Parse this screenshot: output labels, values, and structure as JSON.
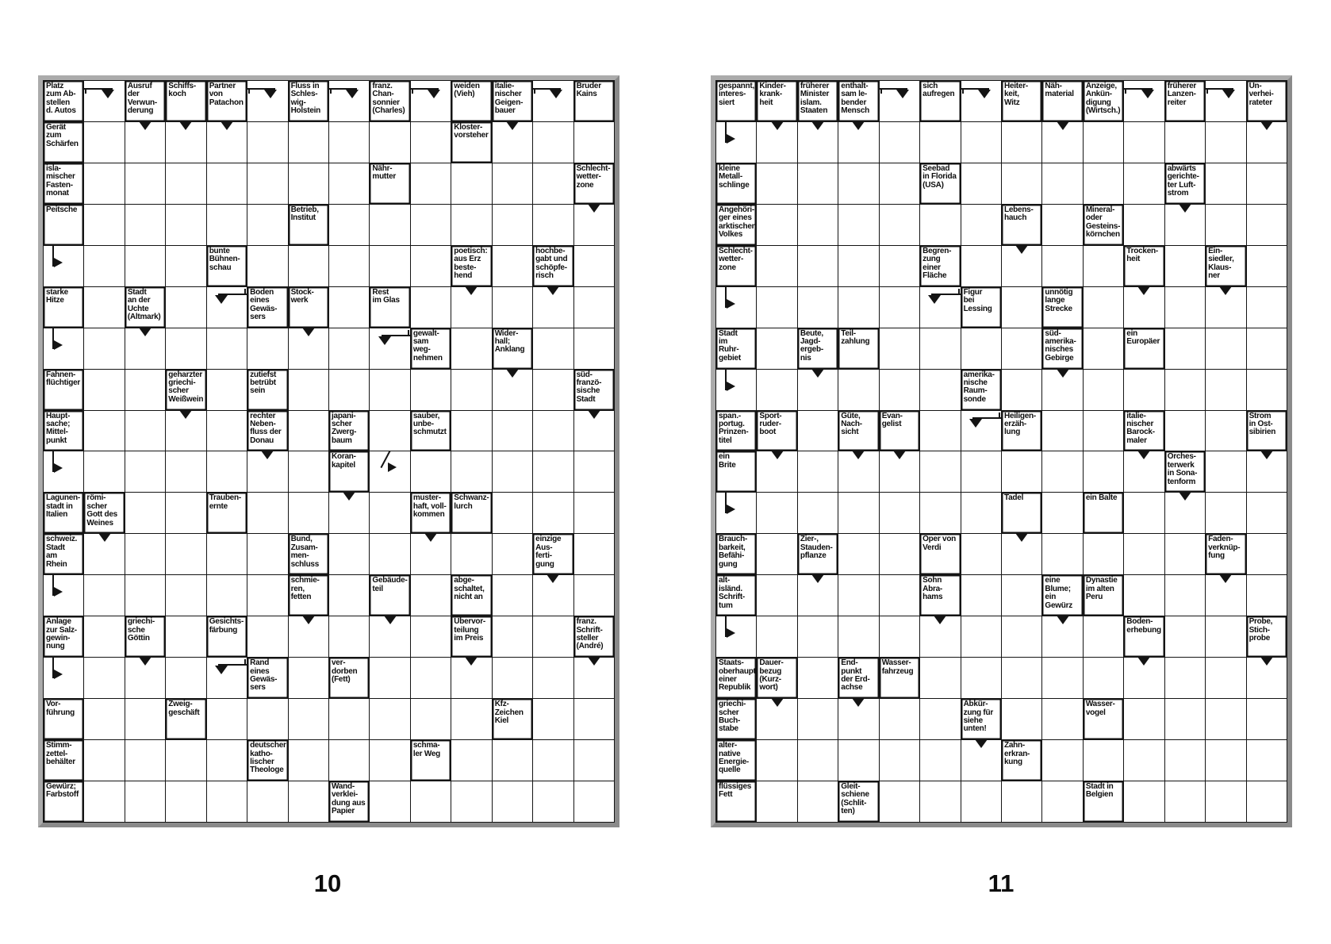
{
  "page": {
    "left_number": "10",
    "right_number": "11"
  },
  "grids": [
    {
      "id": "left",
      "cols": 14,
      "rows": 18,
      "cells": [
        {
          "r": 0,
          "c": 0,
          "t": "Platz\nzum Ab-\nstellen\nd. Autos"
        },
        {
          "r": 0,
          "c": 1,
          "a": "hd"
        },
        {
          "r": 0,
          "c": 2,
          "t": "Ausruf\nder\nVerwun-\nderung"
        },
        {
          "r": 0,
          "c": 3,
          "t": "Schiffs-\nkoch"
        },
        {
          "r": 0,
          "c": 4,
          "t": "Partner\nvon\nPatachon"
        },
        {
          "r": 0,
          "c": 5,
          "a": "hd"
        },
        {
          "r": 0,
          "c": 6,
          "t": "Fluss in\nSchles-\nwig-\nHolstein"
        },
        {
          "r": 0,
          "c": 7,
          "a": "hd"
        },
        {
          "r": 0,
          "c": 8,
          "t": "franz.\nChan-\nsonnier\n(Charles)"
        },
        {
          "r": 0,
          "c": 9,
          "a": "hd"
        },
        {
          "r": 0,
          "c": 10,
          "t": "weiden\n(Vieh)"
        },
        {
          "r": 0,
          "c": 11,
          "t": "italie-\nnischer\nGeigen-\nbauer"
        },
        {
          "r": 0,
          "c": 12,
          "a": "hd"
        },
        {
          "r": 0,
          "c": 13,
          "t": "Bruder\nKains"
        },
        {
          "r": 1,
          "c": 0,
          "t": "Gerät\nzum\nSchärfen",
          "m": "r"
        },
        {
          "r": 1,
          "c": 2,
          "a": "vd"
        },
        {
          "r": 1,
          "c": 3,
          "a": "vd"
        },
        {
          "r": 1,
          "c": 4,
          "a": "vd"
        },
        {
          "r": 1,
          "c": 10,
          "t": "Kloster-\nvorsteher",
          "m": "r"
        },
        {
          "r": 1,
          "c": 11,
          "a": "vd"
        },
        {
          "r": 2,
          "c": 0,
          "t": "isla-\nmischer\nFasten-\nmonat",
          "m": "r"
        },
        {
          "r": 2,
          "c": 8,
          "t": "Nähr-\nmutter",
          "m": "r"
        },
        {
          "r": 2,
          "c": 13,
          "t": "Schlecht-\nwetter-\nzone"
        },
        {
          "r": 3,
          "c": 0,
          "t": "Peitsche",
          "m": "r"
        },
        {
          "r": 3,
          "c": 6,
          "t": "Betrieb,\nInstitut",
          "m": "r"
        },
        {
          "r": 3,
          "c": 13,
          "a": "vd"
        },
        {
          "r": 4,
          "c": 0,
          "a": "br"
        },
        {
          "r": 4,
          "c": 4,
          "t": "bunte\nBühnen-\nschau",
          "m": "r"
        },
        {
          "r": 4,
          "c": 10,
          "t": "poetisch:\naus Erz\nbeste-\nhend"
        },
        {
          "r": 4,
          "c": 12,
          "t": "hochbe-\ngabt und\nschöpfe-\nrisch"
        },
        {
          "r": 5,
          "c": 0,
          "t": "starke\nHitze"
        },
        {
          "r": 5,
          "c": 2,
          "t": "Stadt\nan der\nUchte\n(Altmark)"
        },
        {
          "r": 5,
          "c": 4,
          "a": "bd"
        },
        {
          "r": 5,
          "c": 5,
          "t": "Boden\neines\nGewäs-\nsers"
        },
        {
          "r": 5,
          "c": 6,
          "t": "Stock-\nwerk"
        },
        {
          "r": 5,
          "c": 8,
          "t": "Rest\nim Glas",
          "m": "r"
        },
        {
          "r": 5,
          "c": 10,
          "a": "vd"
        },
        {
          "r": 5,
          "c": 12,
          "a": "vd"
        },
        {
          "r": 6,
          "c": 0,
          "a": "br"
        },
        {
          "r": 6,
          "c": 2,
          "a": "vd"
        },
        {
          "r": 6,
          "c": 6,
          "a": "vd"
        },
        {
          "r": 6,
          "c": 8,
          "a": "bd"
        },
        {
          "r": 6,
          "c": 9,
          "t": "gewalt-\nsam\nweg-\nnehmen"
        },
        {
          "r": 6,
          "c": 11,
          "t": "Wider-\nhall;\nAnklang"
        },
        {
          "r": 7,
          "c": 0,
          "t": "Fahnen-\nflüchtiger"
        },
        {
          "r": 7,
          "c": 3,
          "t": "geharzter\ngriechi-\nscher\nWeißwein"
        },
        {
          "r": 7,
          "c": 5,
          "t": "zutiefst\nbetrübt\nsein",
          "m": "r"
        },
        {
          "r": 7,
          "c": 11,
          "a": "vd"
        },
        {
          "r": 7,
          "c": 13,
          "t": "süd-\nfranzö-\nsische\nStadt"
        },
        {
          "r": 8,
          "c": 0,
          "t": "Haupt-\nsache;\nMittel-\npunkt",
          "m": "r"
        },
        {
          "r": 8,
          "c": 3,
          "a": "vd"
        },
        {
          "r": 8,
          "c": 5,
          "t": "rechter\nNeben-\nfluss der\nDonau"
        },
        {
          "r": 8,
          "c": 7,
          "t": "japani-\nscher\nZwerg-\nbaum"
        },
        {
          "r": 8,
          "c": 9,
          "t": "sauber,\nunbe-\nschmutzt",
          "m": "r"
        },
        {
          "r": 8,
          "c": 13,
          "a": "vd"
        },
        {
          "r": 9,
          "c": 0,
          "a": "br"
        },
        {
          "r": 9,
          "c": 5,
          "a": "vd"
        },
        {
          "r": 9,
          "c": 7,
          "t": "Koran-\nkapitel"
        },
        {
          "r": 9,
          "c": 8,
          "a": "dg"
        },
        {
          "r": 10,
          "c": 0,
          "t": "Lagunen-\nstadt in\nItalien"
        },
        {
          "r": 10,
          "c": 1,
          "t": "römi-\nscher\nGott des\nWeines"
        },
        {
          "r": 10,
          "c": 4,
          "t": "Trauben-\nernte",
          "m": "r"
        },
        {
          "r": 10,
          "c": 7,
          "a": "vd"
        },
        {
          "r": 10,
          "c": 9,
          "t": "muster-\nhaft, voll-\nkommen"
        },
        {
          "r": 10,
          "c": 10,
          "t": "Schwanz-\nlurch",
          "m": "r"
        },
        {
          "r": 11,
          "c": 0,
          "t": "schweiz.\nStadt\nam\nRhein",
          "m": "r"
        },
        {
          "r": 11,
          "c": 1,
          "a": "vd"
        },
        {
          "r": 11,
          "c": 6,
          "t": "Bund,\nZusam-\nmen-\nschluss",
          "m": "r"
        },
        {
          "r": 11,
          "c": 9,
          "a": "vd"
        },
        {
          "r": 11,
          "c": 12,
          "t": "einzige\nAus-\nferti-\ngung"
        },
        {
          "r": 12,
          "c": 0,
          "a": "br"
        },
        {
          "r": 12,
          "c": 6,
          "t": "schmie-\nren,\nfetten"
        },
        {
          "r": 12,
          "c": 8,
          "t": "Gebäude-\nteil"
        },
        {
          "r": 12,
          "c": 10,
          "t": "abge-\nschaltet,\nnicht an",
          "m": "r"
        },
        {
          "r": 12,
          "c": 12,
          "a": "vd"
        },
        {
          "r": 13,
          "c": 0,
          "t": "Anlage\nzur Salz-\ngewin-\nnung"
        },
        {
          "r": 13,
          "c": 2,
          "t": "griechi-\nsche\nGöttin"
        },
        {
          "r": 13,
          "c": 4,
          "t": "Gesichts-\nfärbung",
          "m": "r"
        },
        {
          "r": 13,
          "c": 6,
          "a": "vd"
        },
        {
          "r": 13,
          "c": 8,
          "a": "vd"
        },
        {
          "r": 13,
          "c": 10,
          "t": "Übervor-\nteilung\nim Preis"
        },
        {
          "r": 13,
          "c": 13,
          "t": "franz.\nSchrift-\nsteller\n(André)"
        },
        {
          "r": 14,
          "c": 0,
          "a": "br"
        },
        {
          "r": 14,
          "c": 2,
          "a": "vd"
        },
        {
          "r": 14,
          "c": 4,
          "a": "bd"
        },
        {
          "r": 14,
          "c": 5,
          "t": "Rand\neines\nGewäs-\nsers"
        },
        {
          "r": 14,
          "c": 7,
          "t": "ver-\ndorben\n(Fett)",
          "m": "r"
        },
        {
          "r": 14,
          "c": 10,
          "a": "vd"
        },
        {
          "r": 14,
          "c": 13,
          "a": "vd"
        },
        {
          "r": 15,
          "c": 0,
          "t": "Vor-\nführung"
        },
        {
          "r": 15,
          "c": 3,
          "t": "Zweig-\ngeschäft",
          "m": "r"
        },
        {
          "r": 15,
          "c": 11,
          "t": "Kfz-\nZeichen\nKiel",
          "m": "r"
        },
        {
          "r": 16,
          "c": 0,
          "t": "Stimm-\nzettel-\nbehälter",
          "m": "r"
        },
        {
          "r": 16,
          "c": 5,
          "t": "deutscher\nkatho-\nlischer\nTheologe",
          "m": "r"
        },
        {
          "r": 16,
          "c": 9,
          "t": "schma-\nler Weg",
          "m": "r"
        },
        {
          "r": 17,
          "c": 0,
          "t": "Gewürz;\nFarbstoff",
          "m": "r"
        },
        {
          "r": 17,
          "c": 7,
          "t": "Wand-\nverklei-\ndung aus\nPapier",
          "m": "r"
        }
      ]
    },
    {
      "id": "right",
      "cols": 14,
      "rows": 18,
      "cells": [
        {
          "r": 0,
          "c": 0,
          "t": "gespannt,\ninteres-\nsiert"
        },
        {
          "r": 0,
          "c": 1,
          "t": "Kinder-\nkrank-\nheit"
        },
        {
          "r": 0,
          "c": 2,
          "t": "früherer\nMinister\nislam.\nStaaten"
        },
        {
          "r": 0,
          "c": 3,
          "t": "enthalt-\nsam le-\nbender\nMensch"
        },
        {
          "r": 0,
          "c": 4,
          "a": "hd"
        },
        {
          "r": 0,
          "c": 5,
          "t": "sich\naufregen"
        },
        {
          "r": 0,
          "c": 6,
          "a": "hd"
        },
        {
          "r": 0,
          "c": 7,
          "t": "Heiter-\nkeit,\nWitz"
        },
        {
          "r": 0,
          "c": 8,
          "t": "Näh-\nmaterial"
        },
        {
          "r": 0,
          "c": 9,
          "t": "Anzeige,\nAnkün-\ndigung\n(Wirtsch.)"
        },
        {
          "r": 0,
          "c": 10,
          "a": "hd"
        },
        {
          "r": 0,
          "c": 11,
          "t": "früherer\nLanzen-\nreiter"
        },
        {
          "r": 0,
          "c": 12,
          "a": "hd"
        },
        {
          "r": 0,
          "c": 13,
          "t": "Un-\nverhei-\nrateter"
        },
        {
          "r": 1,
          "c": 0,
          "a": "br"
        },
        {
          "r": 1,
          "c": 1,
          "a": "vd"
        },
        {
          "r": 1,
          "c": 2,
          "a": "vd"
        },
        {
          "r": 1,
          "c": 3,
          "a": "vd"
        },
        {
          "r": 1,
          "c": 8,
          "a": "vd"
        },
        {
          "r": 1,
          "c": 13,
          "a": "vd"
        },
        {
          "r": 2,
          "c": 0,
          "t": "kleine\nMetall-\nschlinge",
          "m": "r"
        },
        {
          "r": 2,
          "c": 5,
          "t": "Seebad\nin Florida\n(USA)",
          "m": "r"
        },
        {
          "r": 2,
          "c": 11,
          "t": "abwärts\ngerichte-\nter Luft-\nstrom"
        },
        {
          "r": 3,
          "c": 0,
          "t": "Angehöri-\nger eines\narktischen\nVolkes",
          "m": "r"
        },
        {
          "r": 3,
          "c": 7,
          "t": "Lebens-\nhauch"
        },
        {
          "r": 3,
          "c": 9,
          "t": "Mineral-\noder\nGesteins-\nkörnchen",
          "m": "r"
        },
        {
          "r": 3,
          "c": 11,
          "a": "vd"
        },
        {
          "r": 4,
          "c": 0,
          "t": "Schlecht-\nwetter-\nzone",
          "m": "r"
        },
        {
          "r": 4,
          "c": 5,
          "t": "Begren-\nzung\neiner\nFläche",
          "m": "r"
        },
        {
          "r": 4,
          "c": 7,
          "a": "vd"
        },
        {
          "r": 4,
          "c": 10,
          "t": "Trocken-\nheit"
        },
        {
          "r": 4,
          "c": 12,
          "t": "Ein-\nsiedler,\nKlaus-\nner"
        },
        {
          "r": 5,
          "c": 0,
          "a": "br"
        },
        {
          "r": 5,
          "c": 5,
          "a": "bd"
        },
        {
          "r": 5,
          "c": 6,
          "t": "Figur\nbei\nLessing"
        },
        {
          "r": 5,
          "c": 8,
          "t": "unnötig\nlange\nStrecke",
          "m": "r"
        },
        {
          "r": 5,
          "c": 10,
          "a": "vd"
        },
        {
          "r": 5,
          "c": 12,
          "a": "vd"
        },
        {
          "r": 6,
          "c": 0,
          "t": "Stadt\nim\nRuhr-\ngebiet"
        },
        {
          "r": 6,
          "c": 2,
          "t": "Beute,\nJagd-\nergeb-\nnis"
        },
        {
          "r": 6,
          "c": 3,
          "t": "Teil-\nzahlung",
          "m": "r"
        },
        {
          "r": 6,
          "c": 8,
          "t": "süd-\namerika-\nnisches\nGebirge"
        },
        {
          "r": 6,
          "c": 10,
          "t": "ein\nEuropäer",
          "m": "r"
        },
        {
          "r": 7,
          "c": 0,
          "a": "br"
        },
        {
          "r": 7,
          "c": 2,
          "a": "vd"
        },
        {
          "r": 7,
          "c": 6,
          "t": "amerika-\nnische\nRaum-\nsonde",
          "m": "r"
        },
        {
          "r": 7,
          "c": 8,
          "a": "vd"
        },
        {
          "r": 8,
          "c": 0,
          "t": "span.-\nportug.\nPrinzen-\ntitel"
        },
        {
          "r": 8,
          "c": 1,
          "t": "Sport-\nruder-\nboot"
        },
        {
          "r": 8,
          "c": 3,
          "t": "Güte,\nNach-\nsicht"
        },
        {
          "r": 8,
          "c": 4,
          "t": "Evan-\ngelist"
        },
        {
          "r": 8,
          "c": 6,
          "a": "bd"
        },
        {
          "r": 8,
          "c": 7,
          "t": "Heiligen-\nerzäh-\nlung"
        },
        {
          "r": 8,
          "c": 10,
          "t": "italie-\nnischer\nBarock-\nmaler"
        },
        {
          "r": 8,
          "c": 13,
          "t": "Strom\nin Ost-\nsibirien"
        },
        {
          "r": 9,
          "c": 0,
          "t": "ein\nBrite",
          "m": "r"
        },
        {
          "r": 9,
          "c": 1,
          "a": "vd"
        },
        {
          "r": 9,
          "c": 3,
          "a": "vd"
        },
        {
          "r": 9,
          "c": 4,
          "a": "vd"
        },
        {
          "r": 9,
          "c": 10,
          "a": "vd"
        },
        {
          "r": 9,
          "c": 11,
          "t": "Orches-\nterwerk\nin Sona-\ntenform"
        },
        {
          "r": 9,
          "c": 13,
          "a": "vd"
        },
        {
          "r": 10,
          "c": 0,
          "a": "br"
        },
        {
          "r": 10,
          "c": 7,
          "t": "Tadel"
        },
        {
          "r": 10,
          "c": 9,
          "t": "ein Balte",
          "m": "r"
        },
        {
          "r": 10,
          "c": 11,
          "a": "vd"
        },
        {
          "r": 11,
          "c": 0,
          "t": "Brauch-\nbarkeit,\nBefähi-\ngung"
        },
        {
          "r": 11,
          "c": 2,
          "t": "Zier-,\nStauden-\npflanze"
        },
        {
          "r": 11,
          "c": 5,
          "t": "Oper von\nVerdi",
          "m": "r"
        },
        {
          "r": 11,
          "c": 7,
          "a": "vd"
        },
        {
          "r": 11,
          "c": 12,
          "t": "Faden-\nverknüp-\nfung"
        },
        {
          "r": 12,
          "c": 0,
          "t": "alt-\nisländ.\nSchrift-\ntum",
          "m": "r"
        },
        {
          "r": 12,
          "c": 2,
          "a": "vd"
        },
        {
          "r": 12,
          "c": 5,
          "t": "Sohn\nAbra-\nhams"
        },
        {
          "r": 12,
          "c": 8,
          "t": "eine\nBlume;\nein\nGewürz"
        },
        {
          "r": 12,
          "c": 9,
          "t": "Dynastie\nim alten\nPeru",
          "m": "r"
        },
        {
          "r": 12,
          "c": 12,
          "a": "vd"
        },
        {
          "r": 13,
          "c": 0,
          "a": "br"
        },
        {
          "r": 13,
          "c": 5,
          "a": "vd"
        },
        {
          "r": 13,
          "c": 8,
          "a": "vd"
        },
        {
          "r": 13,
          "c": 10,
          "t": "Boden-\nerhebung"
        },
        {
          "r": 13,
          "c": 13,
          "t": "Probe,\nStich-\nprobe"
        },
        {
          "r": 14,
          "c": 0,
          "t": "Staats-\noberhaupt\neiner\nRepublik"
        },
        {
          "r": 14,
          "c": 1,
          "t": "Dauer-\nbezug\n(Kurz-\nwort)"
        },
        {
          "r": 14,
          "c": 3,
          "t": "End-\npunkt\nder Erd-\nachse"
        },
        {
          "r": 14,
          "c": 4,
          "t": "Wasser-\nfahrzeug",
          "m": "r"
        },
        {
          "r": 14,
          "c": 10,
          "a": "vd"
        },
        {
          "r": 14,
          "c": 13,
          "a": "vd"
        },
        {
          "r": 15,
          "c": 0,
          "t": "griechi-\nscher\nBuch-\nstabe",
          "m": "r"
        },
        {
          "r": 15,
          "c": 1,
          "a": "vd"
        },
        {
          "r": 15,
          "c": 3,
          "a": "vd"
        },
        {
          "r": 15,
          "c": 6,
          "t": "Abkür-\nzung für\nsiehe\nunten!"
        },
        {
          "r": 15,
          "c": 9,
          "t": "Wasser-\nvogel",
          "m": "r"
        },
        {
          "r": 16,
          "c": 0,
          "t": "alter-\nnative\nEnergie-\nquelle",
          "m": "r"
        },
        {
          "r": 16,
          "c": 6,
          "a": "vd"
        },
        {
          "r": 16,
          "c": 7,
          "t": "Zahn-\nerkran-\nkung",
          "m": "r"
        },
        {
          "r": 17,
          "c": 0,
          "t": "flüssiges\nFett",
          "m": "r"
        },
        {
          "r": 17,
          "c": 3,
          "t": "Gleit-\nschiene\n(Schlit-\nten)",
          "m": "r"
        },
        {
          "r": 17,
          "c": 9,
          "t": "Stadt in\nBelgien",
          "m": "r"
        }
      ]
    }
  ]
}
